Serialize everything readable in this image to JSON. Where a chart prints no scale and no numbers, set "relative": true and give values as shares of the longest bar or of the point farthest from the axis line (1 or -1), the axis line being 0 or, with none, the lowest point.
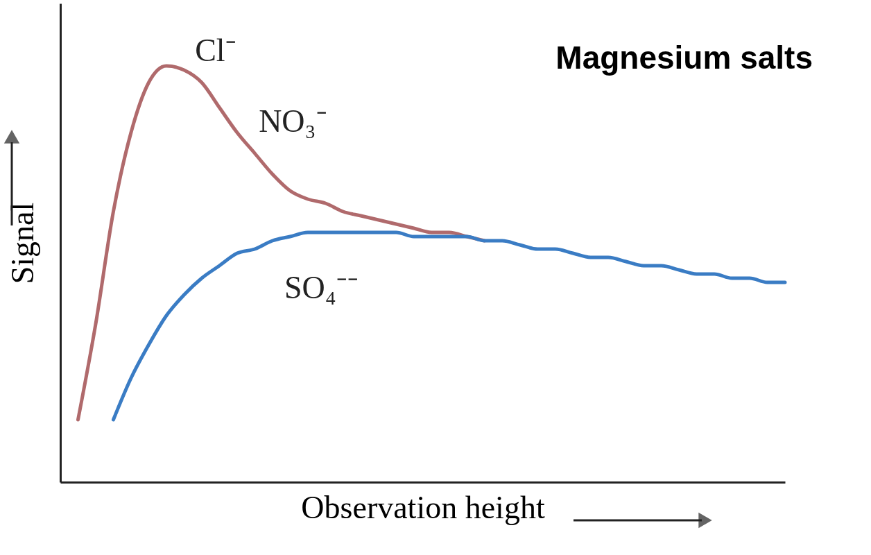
{
  "chart_data": {
    "type": "line",
    "title": "Magnesium salts",
    "xlabel": "Observation height",
    "ylabel": "Signal",
    "relative": true,
    "legend": false,
    "categories": [
      null,
      null,
      null,
      null,
      null,
      null,
      null,
      null,
      null,
      null,
      null,
      null,
      null,
      null,
      null,
      null,
      null,
      null,
      null,
      null,
      null,
      null,
      null,
      null,
      null,
      null,
      null,
      null,
      null,
      null,
      null,
      null,
      null,
      null,
      null,
      null,
      null,
      null,
      null,
      null,
      null,
      null
    ],
    "series": [
      {
        "color": "#b06a6c",
        "values": [
          null,
          0.15,
          0.38,
          0.65,
          0.84,
          0.96,
          1.0,
          0.99,
          0.96,
          0.9,
          0.84,
          0.79,
          0.74,
          0.7,
          0.68,
          0.67,
          0.65,
          0.64,
          0.63,
          0.62,
          0.61,
          0.6,
          0.6,
          0.59,
          0.58,
          null,
          null,
          null,
          null,
          null,
          null,
          null,
          null,
          null,
          null,
          null,
          null,
          null,
          null,
          null,
          null,
          null
        ]
      },
      {
        "name": "SO₄⁻⁻",
        "color": "#3a7cc4",
        "values": [
          null,
          null,
          null,
          0.15,
          0.25,
          0.33,
          0.4,
          0.45,
          0.49,
          0.52,
          0.55,
          0.56,
          0.58,
          0.59,
          0.6,
          0.6,
          0.6,
          0.6,
          0.6,
          0.6,
          0.59,
          0.59,
          0.59,
          0.59,
          0.58,
          0.58,
          0.57,
          0.56,
          0.56,
          0.55,
          0.54,
          0.54,
          0.53,
          0.52,
          0.52,
          0.51,
          0.5,
          0.5,
          0.49,
          0.49,
          0.48,
          0.48
        ]
      }
    ],
    "annotations": [
      "Cl⁻",
      "NO₃⁻"
    ]
  }
}
